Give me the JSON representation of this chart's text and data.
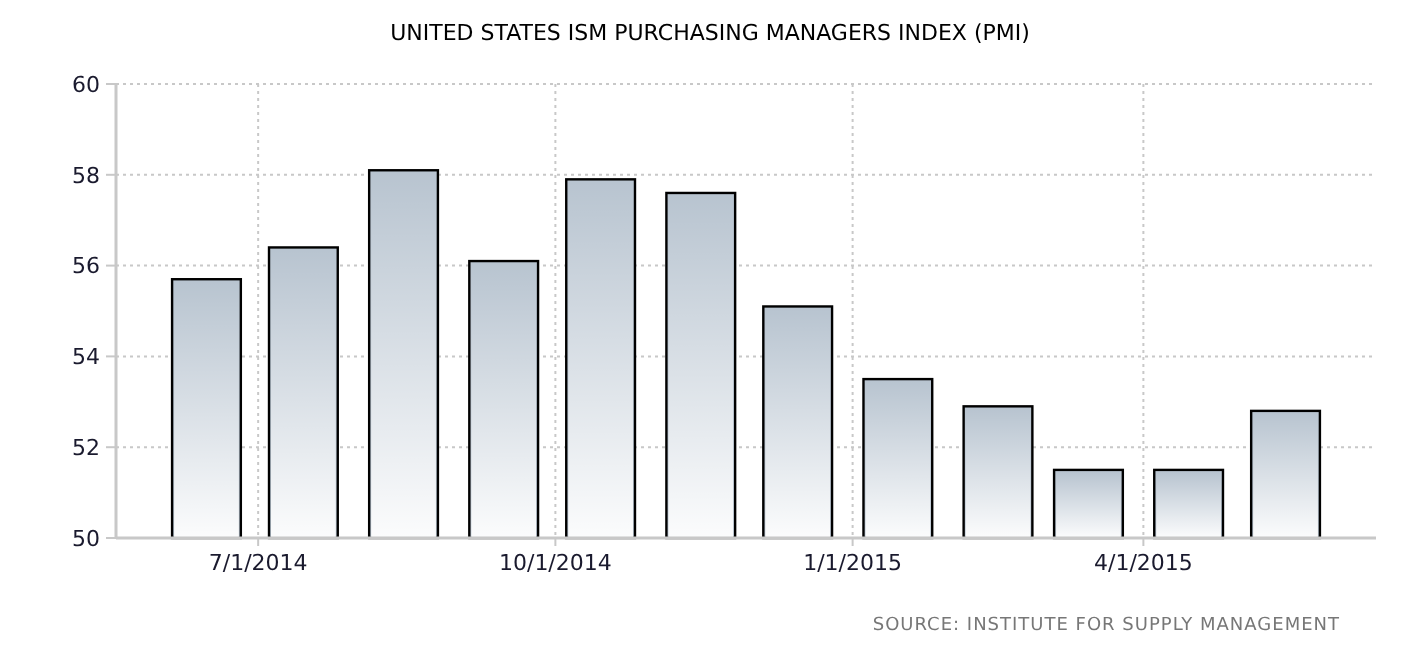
{
  "chart_data": {
    "type": "bar",
    "title": "UNITED STATES ISM PURCHASING MANAGERS INDEX (PMI)",
    "x": [
      "2014-06-15",
      "2014-07-15",
      "2014-08-15",
      "2014-09-15",
      "2014-10-15",
      "2014-11-15",
      "2014-12-15",
      "2015-01-15",
      "2015-02-15",
      "2015-03-15",
      "2015-04-15",
      "2015-05-15"
    ],
    "series": [
      {
        "color": "#b8c4d0",
        "values": [
          55.7,
          56.4,
          58.1,
          56.1,
          57.9,
          57.6,
          55.1,
          53.5,
          52.9,
          51.5,
          51.5,
          52.8
        ]
      }
    ],
    "xlim": [
      "2014-05-18",
      "2015-06-12"
    ],
    "xticks": [
      {
        "value": "2014-07-01",
        "label": "7/1/2014"
      },
      {
        "value": "2014-10-01",
        "label": "10/1/2014"
      },
      {
        "value": "2015-01-01",
        "label": "1/1/2015"
      },
      {
        "value": "2015-04-01",
        "label": "4/1/2015"
      }
    ],
    "ylim": [
      50,
      60
    ],
    "yticks": [
      50,
      52,
      54,
      56,
      58,
      60
    ],
    "grid": true,
    "annotations": [
      "SOURCE: INSTITUTE FOR SUPPLY MANAGEMENT"
    ]
  }
}
